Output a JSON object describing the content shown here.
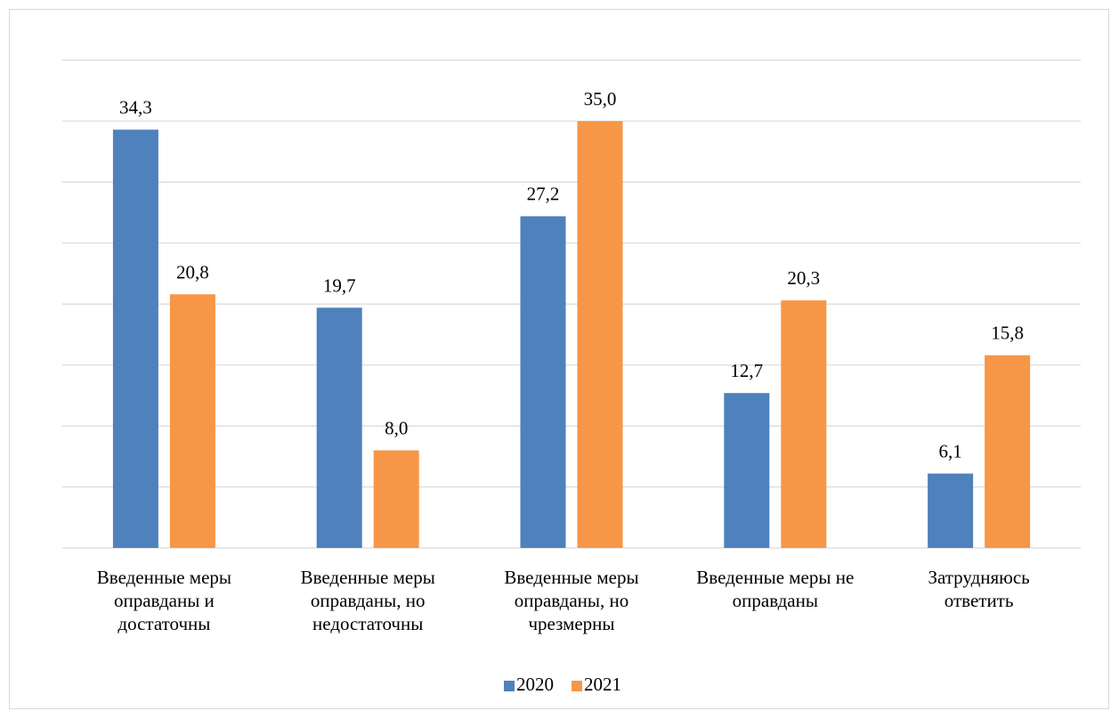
{
  "chart_data": {
    "type": "bar",
    "categories": [
      [
        "Введенные меры",
        "оправданы и",
        "достаточны"
      ],
      [
        "Введенные меры",
        "оправданы, но",
        "недостаточны"
      ],
      [
        "Введенные меры",
        "оправданы, но",
        "чрезмерны"
      ],
      [
        "Введенные меры не",
        "оправданы"
      ],
      [
        "Затрудняюсь",
        "ответить"
      ]
    ],
    "series": [
      {
        "name": "2020",
        "color": "#4f81bd",
        "values": [
          34.3,
          19.7,
          27.2,
          12.7,
          6.1
        ],
        "labels": [
          "34,3",
          "19,7",
          "27,2",
          "12,7",
          "6,1"
        ]
      },
      {
        "name": "2021",
        "color": "#f79646",
        "values": [
          20.8,
          8.0,
          35.0,
          20.3,
          15.8
        ],
        "labels": [
          "20,8",
          "8,0",
          "35,0",
          "20,3",
          "15,8"
        ]
      }
    ],
    "ylim": [
      0,
      40
    ],
    "grid": true,
    "legend": "bottom-center",
    "title": "",
    "xlabel": "",
    "ylabel": ""
  }
}
